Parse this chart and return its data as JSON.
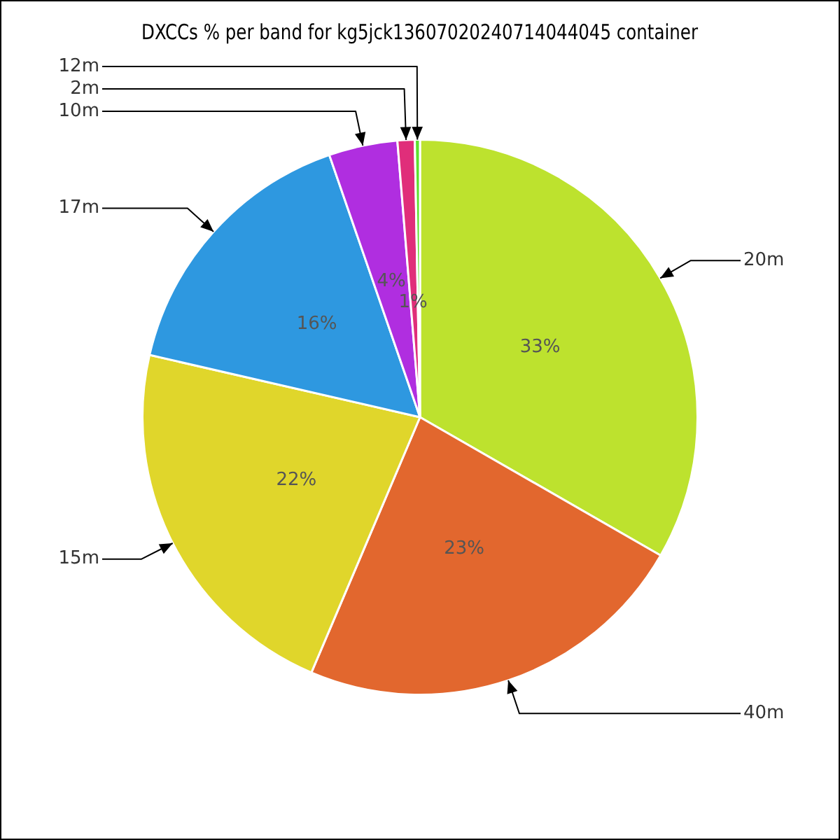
{
  "chart_data": {
    "type": "pie",
    "title": "DXCCs % per band for kg5jck13607020240714044045 container",
    "categories": [
      "20m",
      "40m",
      "15m",
      "17m",
      "10m",
      "2m",
      "12m"
    ],
    "values": [
      33.3,
      23.1,
      22.2,
      16.1,
      4.0,
      1.0,
      0.3
    ],
    "colors": [
      "#bde22e",
      "#e2672e",
      "#e0d62b",
      "#2e98e0",
      "#b02ee0",
      "#e02e7a",
      "#5ee02e"
    ],
    "value_labels": [
      "33%",
      "23%",
      "22%",
      "16%",
      "4%",
      "1%",
      null
    ],
    "legend": false
  }
}
